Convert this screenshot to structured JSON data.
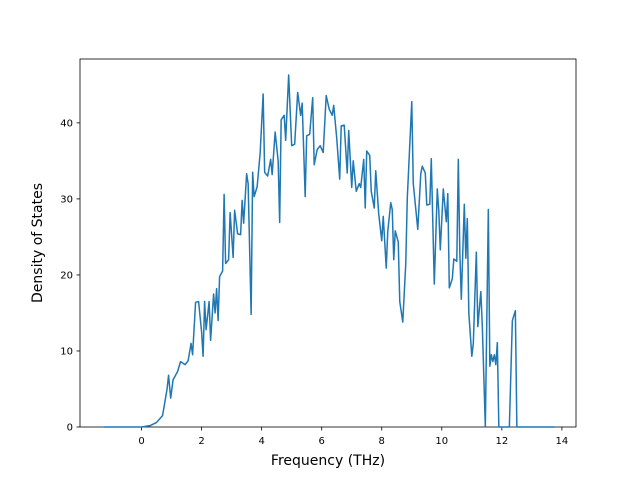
{
  "chart_data": {
    "type": "line",
    "x_label": "Frequency (THz)",
    "y_label": "Density of States",
    "xlim": [
      -2.05,
      14.47
    ],
    "ylim": [
      0,
      48.4
    ],
    "xticks": [
      0,
      2,
      4,
      6,
      8,
      10,
      12,
      14
    ],
    "yticks": [
      0,
      10,
      20,
      30,
      40
    ],
    "x": [
      -1.25,
      0,
      0.3,
      0.5,
      0.7,
      0.85,
      0.9,
      0.97,
      1.05,
      1.2,
      1.3,
      1.45,
      1.55,
      1.65,
      1.7,
      1.8,
      1.9,
      2.0,
      2.05,
      2.1,
      2.15,
      2.25,
      2.3,
      2.4,
      2.45,
      2.5,
      2.55,
      2.6,
      2.7,
      2.75,
      2.8,
      2.9,
      2.95,
      3.05,
      3.1,
      3.2,
      3.3,
      3.35,
      3.4,
      3.5,
      3.55,
      3.65,
      3.7,
      3.75,
      3.85,
      3.95,
      4.05,
      4.1,
      4.2,
      4.3,
      4.35,
      4.45,
      4.55,
      4.6,
      4.65,
      4.75,
      4.8,
      4.9,
      5.0,
      5.1,
      5.2,
      5.3,
      5.35,
      5.45,
      5.5,
      5.6,
      5.7,
      5.75,
      5.85,
      5.95,
      6.05,
      6.15,
      6.25,
      6.35,
      6.4,
      6.5,
      6.6,
      6.65,
      6.75,
      6.85,
      6.9,
      7.0,
      7.05,
      7.15,
      7.25,
      7.3,
      7.4,
      7.45,
      7.5,
      7.6,
      7.65,
      7.75,
      7.8,
      7.9,
      8.0,
      8.05,
      8.15,
      8.2,
      8.3,
      8.35,
      8.4,
      8.45,
      8.55,
      8.6,
      8.7,
      8.8,
      8.85,
      8.95,
      9.0,
      9.05,
      9.15,
      9.2,
      9.3,
      9.35,
      9.45,
      9.5,
      9.6,
      9.65,
      9.75,
      9.85,
      9.9,
      9.95,
      10.05,
      10.15,
      10.2,
      10.25,
      10.35,
      10.4,
      10.5,
      10.55,
      10.6,
      10.65,
      10.75,
      10.8,
      10.85,
      10.9,
      11.0,
      11.05,
      11.15,
      11.2,
      11.3,
      11.35,
      11.45,
      11.55,
      11.6,
      11.65,
      11.7,
      11.75,
      11.8,
      11.85,
      11.9,
      12.0,
      12.15,
      12.25,
      12.35,
      12.45,
      12.5,
      13.75
    ],
    "series": [
      {
        "color": "#1f77b4",
        "values": [
          0,
          0,
          0.2,
          0.6,
          1.5,
          5,
          6.8,
          3.8,
          6.2,
          7.3,
          8.6,
          8.2,
          8.7,
          11,
          9.5,
          16.4,
          16.5,
          12.5,
          9.3,
          16.5,
          12.8,
          16.5,
          11.4,
          17.5,
          15,
          18.2,
          14,
          19.8,
          20.5,
          30.6,
          21.5,
          22,
          28.2,
          22.3,
          28.5,
          25.4,
          25.3,
          29.8,
          26.8,
          33.3,
          32,
          14.8,
          33.5,
          30.3,
          31.6,
          36,
          43.8,
          33.5,
          33,
          35.2,
          33.2,
          38.8,
          35,
          26.9,
          40.4,
          41,
          37.7,
          46.3,
          37,
          37.2,
          44,
          41,
          42.6,
          30.3,
          38.3,
          38.5,
          43.3,
          34.5,
          36.5,
          37,
          36.1,
          43.6,
          41.8,
          41,
          42.3,
          38,
          32.6,
          39.6,
          39.7,
          33.4,
          39,
          31.5,
          35,
          31,
          32,
          31.5,
          35.2,
          28.8,
          36.3,
          35.7,
          31,
          28.8,
          33.7,
          28,
          24.5,
          27.7,
          20.9,
          25.7,
          29.5,
          28.6,
          22,
          25.8,
          24.3,
          16.5,
          13.8,
          21.5,
          30,
          38.5,
          42.8,
          32,
          28,
          26,
          33.3,
          34.3,
          33.4,
          29.2,
          29.3,
          35.3,
          18.8,
          31.3,
          28.4,
          23.3,
          31.3,
          27,
          30.7,
          18.3,
          19.5,
          22.1,
          21.8,
          35.2,
          23,
          16.8,
          29.3,
          22.2,
          27.4,
          15,
          9.3,
          11,
          23,
          13.2,
          17.8,
          13.2,
          0,
          28.6,
          8,
          9.5,
          8.6,
          9.5,
          8.2,
          11.1,
          0,
          0,
          0,
          0,
          14,
          15.3,
          0,
          0
        ]
      }
    ]
  }
}
